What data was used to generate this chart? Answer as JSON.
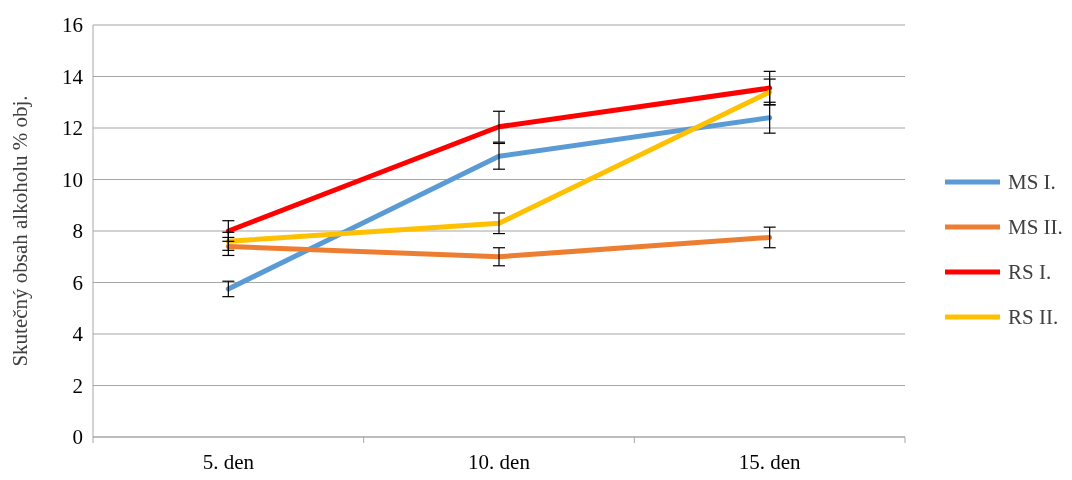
{
  "chart_data": {
    "type": "line",
    "ylabel": "Skutečný obsah alkoholu % obj.",
    "categories": [
      "5. den",
      "10. den",
      "15. den"
    ],
    "ylim": [
      0,
      16
    ],
    "yticks": [
      0,
      2,
      4,
      6,
      8,
      10,
      12,
      14,
      16
    ],
    "grid": "y",
    "legend": "right",
    "marker": "none",
    "line_style": "solid",
    "series": [
      {
        "name": "MS I.",
        "color": "#5b9bd5",
        "values": [
          5.75,
          10.9,
          12.4
        ],
        "errors": [
          0.3,
          0.5,
          0.6
        ]
      },
      {
        "name": "MS II.",
        "color": "#ed7d31",
        "values": [
          7.4,
          7.0,
          7.75
        ],
        "errors": [
          0.35,
          0.35,
          0.4
        ]
      },
      {
        "name": "RS I.",
        "color": "#ff0000",
        "values": [
          8.0,
          12.05,
          13.55
        ],
        "errors": [
          0.4,
          0.6,
          0.65
        ]
      },
      {
        "name": "RS II.",
        "color": "#ffc000",
        "values": [
          7.6,
          8.3,
          13.4
        ],
        "errors": [
          0.35,
          0.4,
          0.5
        ]
      }
    ]
  }
}
